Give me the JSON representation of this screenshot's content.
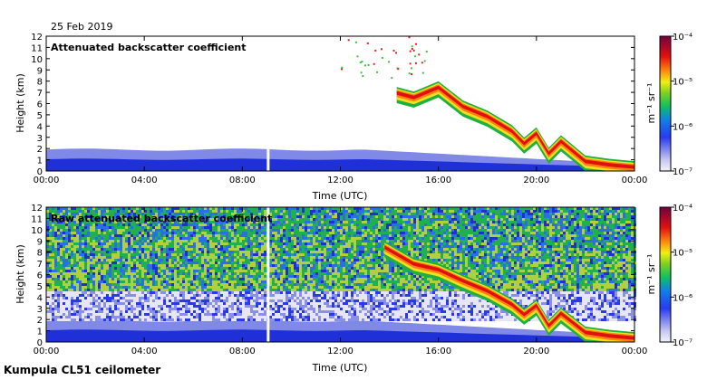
{
  "header": {
    "date": "25 Feb 2019"
  },
  "footer": {
    "instrument": "Kumpula CL51 ceilometer"
  },
  "chart_data": [
    {
      "type": "heatmap",
      "title": "Attenuated backscatter coefficient",
      "xlabel": "Time (UTC)",
      "ylabel": "Height (km)",
      "x_ticks": [
        "00:00",
        "04:00",
        "08:00",
        "12:00",
        "16:00",
        "20:00",
        "00:00"
      ],
      "y_ticks": [
        "0",
        "1",
        "2",
        "3",
        "4",
        "5",
        "6",
        "7",
        "8",
        "9",
        "10",
        "11",
        "12"
      ],
      "xlim_hours": [
        0,
        24
      ],
      "ylim_km": [
        0,
        12
      ],
      "data_gap_hours": [
        9.0,
        9.1
      ],
      "cloud_layer": {
        "time_h": [
          14.3,
          15,
          16,
          17,
          18,
          19,
          19.5,
          20,
          20.5,
          21,
          22,
          23,
          24
        ],
        "height_km": [
          7.0,
          6.6,
          7.5,
          5.8,
          4.9,
          3.6,
          2.5,
          3.4,
          1.6,
          2.7,
          0.9,
          0.6,
          0.4
        ]
      },
      "colorbar": {
        "label": "m⁻¹ sr⁻¹",
        "ticks": [
          "10⁻⁴",
          "10⁻⁵",
          "10⁻⁶",
          "10⁻⁷"
        ]
      }
    },
    {
      "type": "heatmap",
      "title": "Raw attenuated backscatter coefficient",
      "xlabel": "Time (UTC)",
      "ylabel": "Height (km)",
      "x_ticks": [
        "00:00",
        "04:00",
        "08:00",
        "12:00",
        "16:00",
        "20:00",
        "00:00"
      ],
      "y_ticks": [
        "0",
        "1",
        "2",
        "3",
        "4",
        "5",
        "6",
        "7",
        "8",
        "9",
        "10",
        "11",
        "12"
      ],
      "xlim_hours": [
        0,
        24
      ],
      "ylim_km": [
        0,
        12
      ],
      "data_gap_hours": [
        9.0,
        9.1
      ],
      "cloud_layer": {
        "time_h": [
          13.8,
          15,
          16,
          17,
          18,
          19,
          19.5,
          20,
          20.5,
          21,
          22,
          23,
          24
        ],
        "height_km": [
          8.5,
          7.0,
          6.5,
          5.5,
          4.6,
          3.4,
          2.5,
          3.3,
          1.5,
          2.6,
          0.9,
          0.6,
          0.4
        ]
      },
      "colorbar": {
        "label": "m⁻¹ sr⁻¹",
        "ticks": [
          "10⁻⁴",
          "10⁻⁵",
          "10⁻⁶",
          "10⁻⁷"
        ]
      }
    }
  ]
}
